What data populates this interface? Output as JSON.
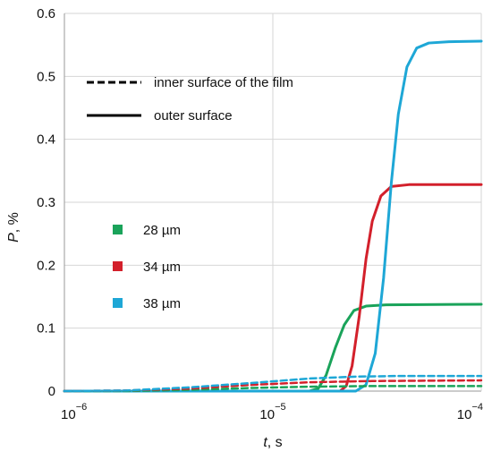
{
  "chart_data": {
    "type": "line",
    "x_scale": "log",
    "xlim": [
      1e-06,
      0.0001
    ],
    "ylim": [
      0,
      0.6
    ],
    "grid": true,
    "xlabel": {
      "var": "t",
      "unit": ", s"
    },
    "ylabel": {
      "var": "P",
      "unit": ", %"
    },
    "x_ticks": [
      {
        "base": "10",
        "exp": "−6",
        "value": 1e-06
      },
      {
        "base": "10",
        "exp": "−5",
        "value": 1e-05
      },
      {
        "base": "10",
        "exp": "−4",
        "value": 0.0001
      }
    ],
    "y_ticks": [
      "0",
      "0.1",
      "0.2",
      "0.3",
      "0.4",
      "0.5",
      "0.6"
    ],
    "y_tick_values": [
      0,
      0.1,
      0.2,
      0.3,
      0.4,
      0.5,
      0.6
    ],
    "style_legend": [
      {
        "style": "dashed",
        "label": "inner surface of the film"
      },
      {
        "style": "solid",
        "label": "outer surface"
      }
    ],
    "color_legend": [
      {
        "label": "28 µm",
        "color": "#1aa35a"
      },
      {
        "label": "34 µm",
        "color": "#d3202b"
      },
      {
        "label": "38 µm",
        "color": "#1ea7d6"
      }
    ],
    "series": [
      {
        "thickness": "28 µm",
        "surface": "outer",
        "style": "solid",
        "color": "#1aa35a",
        "points": [
          [
            1e-06,
            0
          ],
          [
            1.5e-05,
            0
          ],
          [
            1.65e-05,
            0.004
          ],
          [
            1.8e-05,
            0.025
          ],
          [
            2e-05,
            0.07
          ],
          [
            2.2e-05,
            0.105
          ],
          [
            2.45e-05,
            0.128
          ],
          [
            2.8e-05,
            0.135
          ],
          [
            3.5e-05,
            0.137
          ],
          [
            0.0001,
            0.138
          ]
        ]
      },
      {
        "thickness": "34 µm",
        "surface": "outer",
        "style": "solid",
        "color": "#d3202b",
        "points": [
          [
            1e-06,
            0
          ],
          [
            2.1e-05,
            0
          ],
          [
            2.25e-05,
            0.008
          ],
          [
            2.4e-05,
            0.04
          ],
          [
            2.6e-05,
            0.12
          ],
          [
            2.8e-05,
            0.21
          ],
          [
            3e-05,
            0.27
          ],
          [
            3.3e-05,
            0.31
          ],
          [
            3.7e-05,
            0.325
          ],
          [
            4.5e-05,
            0.328
          ],
          [
            0.0001,
            0.328
          ]
        ]
      },
      {
        "thickness": "38 µm",
        "surface": "outer",
        "style": "solid",
        "color": "#1ea7d6",
        "points": [
          [
            1e-06,
            0
          ],
          [
            2.5e-05,
            0
          ],
          [
            2.8e-05,
            0.01
          ],
          [
            3.1e-05,
            0.06
          ],
          [
            3.4e-05,
            0.18
          ],
          [
            3.7e-05,
            0.33
          ],
          [
            4e-05,
            0.44
          ],
          [
            4.4e-05,
            0.515
          ],
          [
            4.9e-05,
            0.545
          ],
          [
            5.6e-05,
            0.553
          ],
          [
            7e-05,
            0.555
          ],
          [
            0.0001,
            0.556
          ]
        ]
      },
      {
        "thickness": "28 µm",
        "surface": "inner",
        "style": "dashed",
        "color": "#1aa35a",
        "points": [
          [
            1e-06,
            0
          ],
          [
            2e-06,
            0
          ],
          [
            4e-06,
            0.002
          ],
          [
            8e-06,
            0.005
          ],
          [
            1.5e-05,
            0.007
          ],
          [
            3e-05,
            0.008
          ],
          [
            0.0001,
            0.008
          ]
        ]
      },
      {
        "thickness": "34 µm",
        "surface": "inner",
        "style": "dashed",
        "color": "#d3202b",
        "points": [
          [
            1e-06,
            0
          ],
          [
            2e-06,
            0.001
          ],
          [
            4e-06,
            0.004
          ],
          [
            8e-06,
            0.01
          ],
          [
            1.5e-05,
            0.014
          ],
          [
            3e-05,
            0.016
          ],
          [
            0.0001,
            0.017
          ]
        ]
      },
      {
        "thickness": "38 µm",
        "surface": "inner",
        "style": "dashed",
        "color": "#1ea7d6",
        "points": [
          [
            1e-06,
            0
          ],
          [
            2e-06,
            0.001
          ],
          [
            4e-06,
            0.006
          ],
          [
            8e-06,
            0.013
          ],
          [
            1.5e-05,
            0.02
          ],
          [
            2.5e-05,
            0.023
          ],
          [
            4e-05,
            0.024
          ],
          [
            0.0001,
            0.024
          ]
        ]
      }
    ]
  }
}
